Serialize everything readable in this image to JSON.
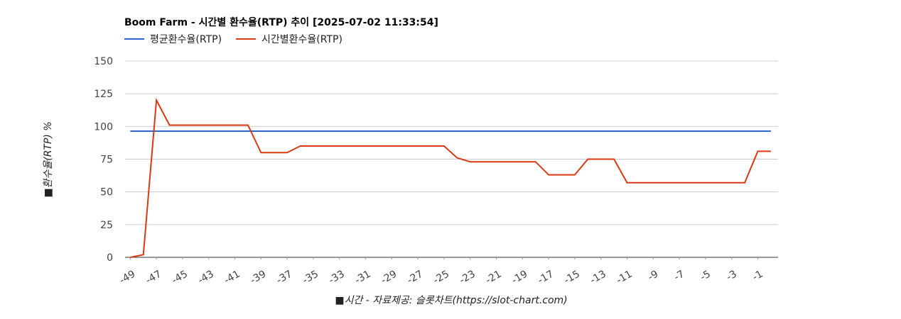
{
  "chart_data": {
    "type": "line",
    "title": "Boom Farm - 시간별 환수율(RTP) 추이 [2025-07-02 11:33:54]",
    "y_label": "■환수율(RTP) %",
    "x_label": "■시간 - 자료제공: 슬롯차트(https://slot-chart.com)",
    "x": [
      -49,
      -48,
      -47,
      -46,
      -45,
      -44,
      -43,
      -42,
      -41,
      -40,
      -39,
      -38,
      -37,
      -36,
      -35,
      -34,
      -33,
      -32,
      -31,
      -30,
      -29,
      -28,
      -27,
      -26,
      -25,
      -24,
      -23,
      -22,
      -21,
      -20,
      -19,
      -18,
      -17,
      -16,
      -15,
      -14,
      -13,
      -12,
      -11,
      -10,
      -9,
      -8,
      -7,
      -6,
      -5,
      -4,
      -3,
      -2,
      -1,
      0
    ],
    "series": [
      {
        "name": "평균환수율(RTP)",
        "color": "#3366cc",
        "values": [
          96.4,
          96.4,
          96.4,
          96.4,
          96.4,
          96.4,
          96.4,
          96.4,
          96.4,
          96.4,
          96.4,
          96.4,
          96.4,
          96.4,
          96.4,
          96.4,
          96.4,
          96.4,
          96.4,
          96.4,
          96.4,
          96.4,
          96.4,
          96.4,
          96.4,
          96.4,
          96.4,
          96.4,
          96.4,
          96.4,
          96.4,
          96.4,
          96.4,
          96.4,
          96.4,
          96.4,
          96.4,
          96.4,
          96.4,
          96.4,
          96.4,
          96.4,
          96.4,
          96.4,
          96.4,
          96.4,
          96.4,
          96.4,
          96.4,
          96.4
        ]
      },
      {
        "name": "시간별환수율(RTP)",
        "color": "#dc3912",
        "values": [
          0,
          2,
          120,
          101,
          101,
          101,
          101,
          101,
          101,
          101,
          80,
          80,
          80,
          85,
          85,
          85,
          85,
          85,
          85,
          85,
          85,
          85,
          85,
          85,
          85,
          76,
          73,
          73,
          73,
          73,
          73,
          73,
          63,
          63,
          63,
          75,
          75,
          75,
          57,
          57,
          57,
          57,
          57,
          57,
          57,
          57,
          57,
          57,
          81,
          81
        ]
      }
    ],
    "xlim": [
      -49.4,
      0.55
    ],
    "xticks": [
      -49,
      -47,
      -45,
      -43,
      -41,
      -39,
      -37,
      -35,
      -33,
      -31,
      -29,
      -27,
      -25,
      -23,
      -21,
      -19,
      -17,
      -15,
      -13,
      -11,
      -9,
      -7,
      -5,
      -3,
      -1
    ],
    "ylim": [
      0,
      150
    ],
    "yticks": [
      0,
      25,
      50,
      75,
      100,
      125,
      150
    ],
    "grid": true,
    "legend": "top"
  }
}
